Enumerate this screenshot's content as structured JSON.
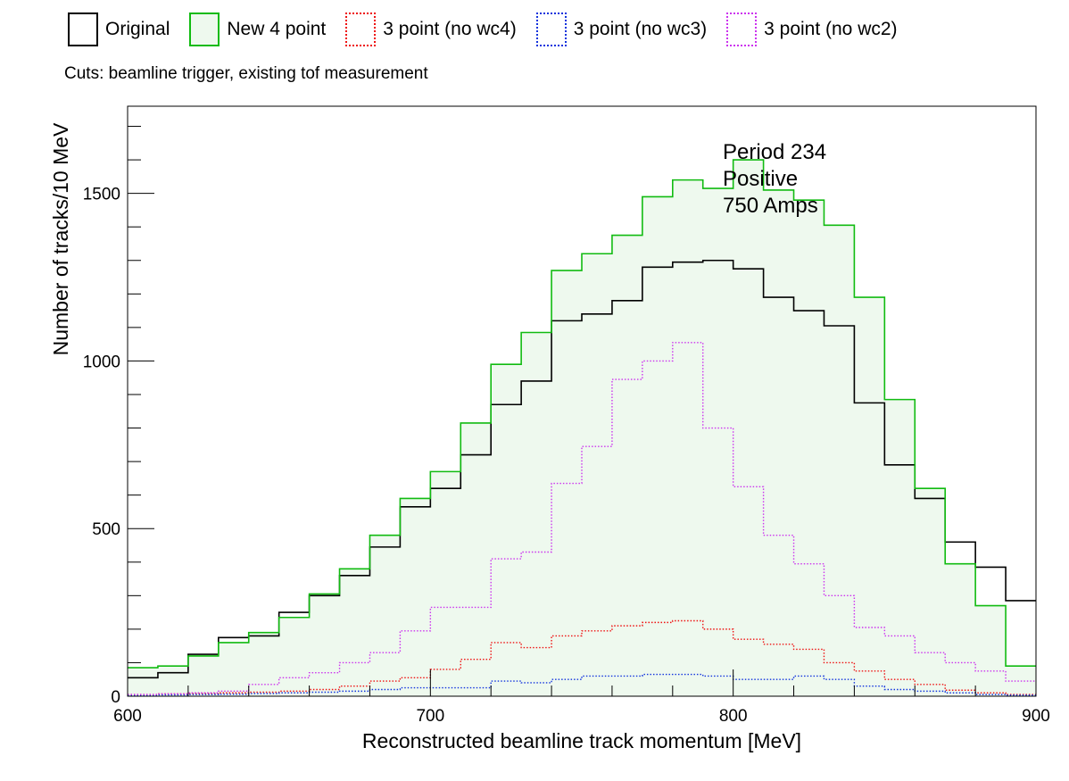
{
  "chart_data": {
    "type": "histogram",
    "xlabel": "Reconstructed beamline track momentum [MeV]",
    "ylabel": "Number of tracks/10 MeV",
    "xlim": [
      600,
      900
    ],
    "ylim": [
      0,
      1760
    ],
    "x_ticks": [
      600,
      700,
      800,
      900
    ],
    "y_ticks": [
      0,
      500,
      1000,
      1500
    ],
    "y_tick_labels": [
      "0",
      "500",
      "1000",
      "1500"
    ],
    "bin_width": 10,
    "bin_edges_start": 600,
    "grid": false,
    "legend_position": "top",
    "cuts_text": "Cuts: beamline trigger, existing tof measurement",
    "annotation": [
      "Period 234",
      "Positive",
      "750 Amps"
    ],
    "series": [
      {
        "name": "Original",
        "color": "#000000",
        "style": "solid",
        "fill": "",
        "values": [
          55,
          70,
          125,
          175,
          180,
          250,
          300,
          360,
          445,
          565,
          620,
          720,
          870,
          940,
          1120,
          1140,
          1180,
          1280,
          1295,
          1300,
          1275,
          1190,
          1150,
          1105,
          875,
          690,
          590,
          460,
          385,
          285
        ]
      },
      {
        "name": "New 4 point",
        "color": "#11bb11",
        "style": "solid",
        "fill": "#eef9ee",
        "values": [
          85,
          90,
          120,
          160,
          190,
          235,
          305,
          380,
          480,
          590,
          670,
          815,
          990,
          1085,
          1270,
          1320,
          1375,
          1490,
          1540,
          1515,
          1600,
          1510,
          1480,
          1405,
          1190,
          885,
          620,
          395,
          270,
          90
        ]
      },
      {
        "name": "3 point (no wc4)",
        "color": "#ee1111",
        "style": "dotted",
        "fill": "",
        "values": [
          5,
          7,
          8,
          10,
          12,
          15,
          20,
          30,
          45,
          55,
          80,
          110,
          160,
          145,
          180,
          195,
          210,
          220,
          225,
          200,
          170,
          155,
          140,
          100,
          75,
          50,
          35,
          18,
          10,
          5
        ]
      },
      {
        "name": "3 point (no wc3)",
        "color": "#1133dd",
        "style": "dotted",
        "fill": "",
        "values": [
          3,
          4,
          5,
          6,
          8,
          10,
          12,
          15,
          20,
          25,
          25,
          25,
          45,
          40,
          50,
          60,
          60,
          65,
          65,
          60,
          50,
          50,
          60,
          50,
          30,
          20,
          15,
          10,
          5,
          3
        ]
      },
      {
        "name": "3 point (no wc2)",
        "color": "#cc33ee",
        "style": "dotted",
        "fill": "",
        "values": [
          5,
          7,
          10,
          15,
          35,
          55,
          70,
          100,
          130,
          195,
          265,
          265,
          410,
          430,
          635,
          745,
          945,
          1000,
          1055,
          800,
          625,
          480,
          395,
          300,
          205,
          180,
          130,
          100,
          75,
          45
        ]
      }
    ]
  }
}
